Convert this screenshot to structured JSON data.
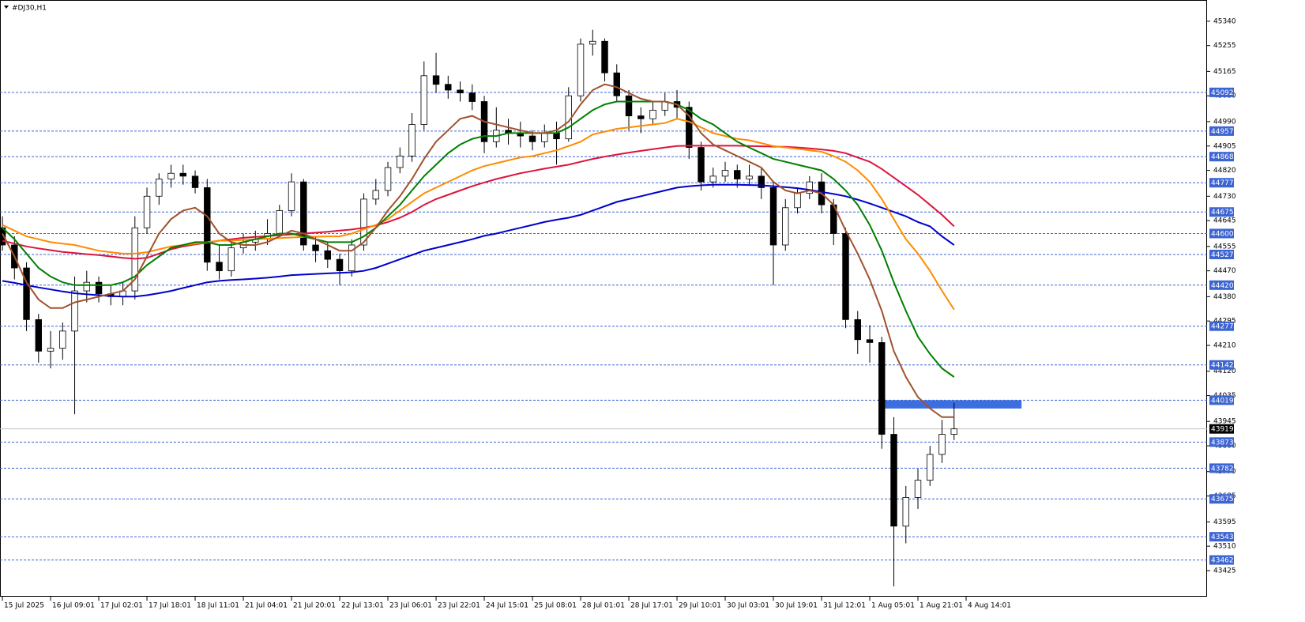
{
  "chart_data": {
    "type": "candlestick",
    "title": "#DJ30,H1",
    "xlim": [
      -0.2,
      100
    ],
    "ylim": [
      43334,
      45414
    ],
    "xticks": [
      {
        "value": 0,
        "label": "15 Jul 2025"
      },
      {
        "value": 4,
        "label": "16 Jul 09:01"
      },
      {
        "value": 8,
        "label": "17 Jul 02:01"
      },
      {
        "value": 12,
        "label": "17 Jul 18:01"
      },
      {
        "value": 16,
        "label": "18 Jul 11:01"
      },
      {
        "value": 20,
        "label": "21 Jul 04:01"
      },
      {
        "value": 24,
        "label": "21 Jul 20:01"
      },
      {
        "value": 28,
        "label": "22 Jul 13:01"
      },
      {
        "value": 32,
        "label": "23 Jul 06:01"
      },
      {
        "value": 36,
        "label": "23 Jul 22:01"
      },
      {
        "value": 40,
        "label": "24 Jul 15:01"
      },
      {
        "value": 44,
        "label": "25 Jul 08:01"
      },
      {
        "value": 48,
        "label": "28 Jul 01:01"
      },
      {
        "value": 52,
        "label": "28 Jul 17:01"
      },
      {
        "value": 56,
        "label": "29 Jul 10:01"
      },
      {
        "value": 60,
        "label": "30 Jul 03:01"
      },
      {
        "value": 64,
        "label": "30 Jul 19:01"
      },
      {
        "value": 68,
        "label": "31 Jul 12:01"
      },
      {
        "value": 72,
        "label": "1 Aug 05:01"
      },
      {
        "value": 76,
        "label": "1 Aug 21:01"
      },
      {
        "value": 80,
        "label": "4 Aug 14:01"
      }
    ],
    "yticks": [
      45340,
      45255,
      45165,
      45080,
      44990,
      44905,
      44820,
      44730,
      44645,
      44555,
      44470,
      44380,
      44295,
      44210,
      44120,
      44035,
      43945,
      43860,
      43770,
      43685,
      43595,
      43510,
      43425
    ],
    "x": [
      0,
      1,
      2,
      3,
      4,
      5,
      6,
      7,
      8,
      9,
      10,
      11,
      12,
      13,
      14,
      15,
      16,
      17,
      18,
      19,
      20,
      21,
      22,
      23,
      24,
      25,
      26,
      27,
      28,
      29,
      30,
      31,
      32,
      33,
      34,
      35,
      36,
      37,
      38,
      39,
      40,
      41,
      42,
      43,
      44,
      45,
      46,
      47,
      48,
      49,
      50,
      51,
      52,
      53,
      54,
      55,
      56,
      57,
      58,
      59,
      60,
      61,
      62,
      63,
      64,
      65,
      66,
      67,
      68,
      69,
      70,
      71,
      72,
      73,
      74,
      75,
      76,
      77,
      78,
      79
    ],
    "open": [
      44620,
      44560,
      44480,
      44300,
      44190,
      44200,
      44260,
      44400,
      44430,
      44390,
      44380,
      44400,
      44620,
      44730,
      44790,
      44810,
      44800,
      44760,
      44500,
      44470,
      44550,
      44570,
      44580,
      44600,
      44680,
      44780,
      44560,
      44540,
      44510,
      44470,
      44560,
      44720,
      44750,
      44830,
      44870,
      44980,
      45150,
      45120,
      45100,
      45090,
      45060,
      44920,
      44960,
      44950,
      44940,
      44920,
      44950,
      44930,
      45080,
      45260,
      45270,
      45160,
      45080,
      45010,
      45000,
      45030,
      45060,
      45040,
      44900,
      44780,
      44800,
      44820,
      44790,
      44800,
      44760,
      44560,
      44690,
      44740,
      44780,
      44700,
      44600,
      44300,
      44230,
      44220,
      43900,
      43580,
      43680,
      43740,
      43830,
      43900
    ],
    "high": [
      44660,
      44590,
      44500,
      44320,
      44260,
      44290,
      44450,
      44470,
      44450,
      44420,
      44430,
      44660,
      44760,
      44810,
      44840,
      44840,
      44820,
      44790,
      44560,
      44580,
      44600,
      44610,
      44650,
      44700,
      44810,
      44790,
      44590,
      44570,
      44530,
      44580,
      44740,
      44790,
      44850,
      44900,
      45020,
      45200,
      45230,
      45150,
      45130,
      45120,
      45080,
      45040,
      45000,
      44990,
      44960,
      44980,
      44990,
      45110,
      45280,
      45310,
      45280,
      45190,
      45100,
      45040,
      45060,
      45090,
      45100,
      45060,
      44920,
      44830,
      44850,
      44840,
      44840,
      44830,
      44780,
      44720,
      44760,
      44800,
      44810,
      44720,
      44620,
      44330,
      44280,
      44240,
      43960,
      43720,
      43780,
      43860,
      43950,
      44010
    ],
    "low": [
      44540,
      44440,
      44260,
      44150,
      44130,
      44160,
      43970,
      44360,
      44360,
      44350,
      44350,
      44370,
      44600,
      44700,
      44760,
      44770,
      44740,
      44470,
      44440,
      44450,
      44530,
      44540,
      44560,
      44590,
      44660,
      44540,
      44500,
      44480,
      44420,
      44450,
      44540,
      44700,
      44730,
      44810,
      44850,
      44960,
      45090,
      45070,
      45060,
      45030,
      44880,
      44900,
      44910,
      44900,
      44890,
      44900,
      44840,
      44920,
      45060,
      45220,
      45130,
      45060,
      44960,
      44950,
      44980,
      45010,
      45000,
      44860,
      44750,
      44760,
      44780,
      44760,
      44770,
      44720,
      44420,
      44540,
      44670,
      44720,
      44670,
      44560,
      44270,
      44180,
      44150,
      43850,
      43370,
      43520,
      43640,
      43720,
      43800,
      43880
    ],
    "close": [
      44560,
      44480,
      44300,
      44190,
      44200,
      44260,
      44400,
      44430,
      44390,
      44380,
      44400,
      44620,
      44730,
      44790,
      44810,
      44800,
      44760,
      44500,
      44470,
      44550,
      44570,
      44580,
      44600,
      44680,
      44780,
      44560,
      44540,
      44510,
      44470,
      44560,
      44720,
      44750,
      44830,
      44870,
      44980,
      45150,
      45120,
      45100,
      45090,
      45060,
      44920,
      44960,
      44950,
      44940,
      44920,
      44950,
      44930,
      45080,
      45260,
      45270,
      45160,
      45080,
      45010,
      45000,
      45030,
      45060,
      45040,
      44900,
      44780,
      44800,
      44820,
      44790,
      44800,
      44760,
      44560,
      44690,
      44740,
      44780,
      44700,
      44600,
      44300,
      44230,
      44220,
      43900,
      43580,
      43680,
      43740,
      43830,
      43900,
      43919
    ],
    "bull_color": "#ffffff",
    "bear_color": "#000000",
    "indicators": [
      {
        "color": "#0000cd",
        "values": [
          44435,
          44428,
          44420,
          44412,
          44405,
          44398,
          44392,
          44388,
          44385,
          44382,
          44380,
          44380,
          44385,
          44392,
          44400,
          44410,
          44420,
          44430,
          44435,
          44438,
          44440,
          44443,
          44446,
          44450,
          44455,
          44457,
          44459,
          44461,
          44463,
          44465,
          44470,
          44480,
          44495,
          44510,
          44525,
          44540,
          44550,
          44560,
          44570,
          44580,
          44592,
          44600,
          44610,
          44620,
          44630,
          44640,
          44648,
          44655,
          44665,
          44680,
          44695,
          44710,
          44720,
          44730,
          44740,
          44750,
          44760,
          44765,
          44768,
          44770,
          44770,
          44770,
          44769,
          44768,
          44765,
          44762,
          44758,
          44752,
          44745,
          44738,
          44730,
          44718,
          44705,
          44690,
          44675,
          44660,
          44640,
          44625,
          44590,
          44560
        ]
      },
      {
        "color": "#dc143c",
        "values": [
          44575,
          44565,
          44555,
          44548,
          44542,
          44536,
          44532,
          44528,
          44525,
          44520,
          44515,
          44512,
          44515,
          44530,
          44545,
          44555,
          44562,
          44568,
          44575,
          44580,
          44585,
          44588,
          44591,
          44594,
          44597,
          44600,
          44603,
          44606,
          44610,
          44614,
          44620,
          44628,
          44640,
          44655,
          44675,
          44700,
          44720,
          44735,
          44750,
          44765,
          44778,
          44790,
          44800,
          44810,
          44818,
          44826,
          44833,
          44840,
          44850,
          44860,
          44868,
          44875,
          44882,
          44888,
          44894,
          44900,
          44905,
          44906,
          44906,
          44906,
          44906,
          44906,
          44905,
          44904,
          44903,
          44902,
          44900,
          44897,
          44893,
          44888,
          44880,
          44865,
          44850,
          44825,
          44795,
          44765,
          44735,
          44700,
          44665,
          44625
        ]
      },
      {
        "color": "#ff8c00",
        "values": [
          44630,
          44610,
          44590,
          44580,
          44570,
          44565,
          44560,
          44550,
          44540,
          44535,
          44530,
          44530,
          44535,
          44545,
          44555,
          44560,
          44565,
          44570,
          44575,
          44575,
          44578,
          44580,
          44582,
          44584,
          44586,
          44588,
          44589,
          44590,
          44590,
          44600,
          44615,
          44630,
          44650,
          44680,
          44710,
          44740,
          44760,
          44780,
          44800,
          44820,
          44835,
          44845,
          44855,
          44865,
          44870,
          44880,
          44890,
          44905,
          44920,
          44945,
          44955,
          44965,
          44970,
          44975,
          44980,
          44985,
          45000,
          44990,
          44970,
          44950,
          44940,
          44930,
          44925,
          44915,
          44905,
          44900,
          44895,
          44890,
          44885,
          44870,
          44850,
          44820,
          44780,
          44720,
          44650,
          44580,
          44530,
          44470,
          44400,
          44335
        ]
      },
      {
        "color": "#008000",
        "values": [
          44620,
          44580,
          44530,
          44480,
          44450,
          44430,
          44420,
          44420,
          44420,
          44420,
          44430,
          44450,
          44490,
          44520,
          44550,
          44560,
          44570,
          44570,
          44560,
          44560,
          44570,
          44580,
          44590,
          44600,
          44600,
          44590,
          44580,
          44570,
          44570,
          44570,
          44590,
          44620,
          44660,
          44700,
          44750,
          44800,
          44840,
          44880,
          44910,
          44930,
          44940,
          44940,
          44950,
          44950,
          44950,
          44950,
          44950,
          44970,
          45000,
          45030,
          45050,
          45060,
          45060,
          45060,
          45060,
          45060,
          45050,
          45030,
          45000,
          44980,
          44950,
          44920,
          44900,
          44880,
          44860,
          44850,
          44840,
          44830,
          44820,
          44790,
          44750,
          44700,
          44630,
          44540,
          44430,
          44330,
          44240,
          44180,
          44130,
          44100
        ]
      },
      {
        "color": "#a0522d",
        "values": [
          44600,
          44520,
          44430,
          44370,
          44340,
          44340,
          44360,
          44370,
          44380,
          44390,
          44400,
          44440,
          44520,
          44600,
          44650,
          44680,
          44690,
          44660,
          44600,
          44570,
          44560,
          44560,
          44570,
          44590,
          44610,
          44600,
          44580,
          44560,
          44540,
          44540,
          44570,
          44620,
          44680,
          44730,
          44790,
          44860,
          44920,
          44960,
          45000,
          45010,
          44990,
          44980,
          44970,
          44960,
          44950,
          44950,
          44960,
          44990,
          45050,
          45100,
          45120,
          45110,
          45090,
          45070,
          45060,
          45060,
          45050,
          45010,
          44950,
          44910,
          44890,
          44870,
          44850,
          44830,
          44780,
          44750,
          44740,
          44750,
          44740,
          44700,
          44610,
          44530,
          44440,
          44330,
          44190,
          44100,
          44030,
          43990,
          43960,
          43960
        ]
      }
    ],
    "levels": [
      45092,
      44957,
      44868,
      44777,
      44675,
      44600,
      44527,
      44420,
      44277,
      44142,
      44019,
      43873,
      43782,
      43675,
      43543,
      43462
    ],
    "level_color": "#3c64d2",
    "last_price": 43919,
    "zone": {
      "x": [
        73,
        84.6
      ],
      "y": [
        43990,
        44019
      ],
      "color": "#3c6ee0"
    }
  }
}
